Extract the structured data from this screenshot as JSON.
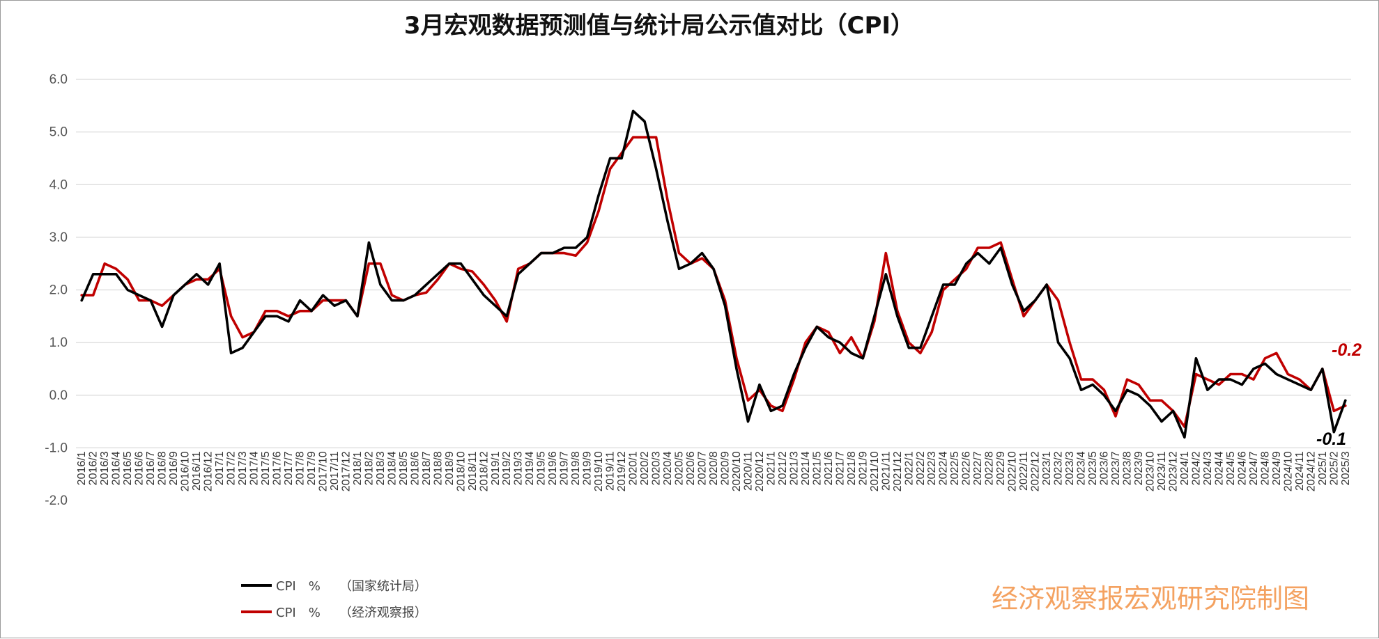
{
  "chart_data": {
    "type": "line",
    "title": "3月宏观数据预测值与统计局公示值对比（CPI）",
    "ylim": [
      -2.0,
      6.0
    ],
    "yticks": [
      "6.0",
      "5.0",
      "4.0",
      "3.0",
      "2.0",
      "1.0",
      "0.0",
      "-1.0",
      "-2.0"
    ],
    "grid": true,
    "legend_position": "bottom-left",
    "x": [
      "2016/1",
      "2016/2",
      "2016/3",
      "2016/4",
      "2016/5",
      "2016/6",
      "2016/7",
      "2016/8",
      "2016/9",
      "2016/10",
      "2016/11",
      "2016/12",
      "2017/1",
      "2017/2",
      "2017/3",
      "2017/4",
      "2017/5",
      "2017/6",
      "2017/7",
      "2017/8",
      "2017/9",
      "2017/10",
      "2017/11",
      "2017/12",
      "2018/1",
      "2018/2",
      "2018/3",
      "2018/4",
      "2018/5",
      "2018/6",
      "2018/7",
      "2018/8",
      "2018/9",
      "2018/10",
      "2018/11",
      "2018/12",
      "2019/1",
      "2019/2",
      "2019/3",
      "2019/4",
      "2019/5",
      "2019/6",
      "2019/7",
      "2019/8",
      "2019/9",
      "2019/10",
      "2019/11",
      "2019/12",
      "2020/1",
      "2020/2",
      "2020/3",
      "2020/4",
      "2020/5",
      "2020/6",
      "2020/7",
      "2020/8",
      "2020/9",
      "2020/10",
      "2020/11",
      "2020/12",
      "2021/1",
      "2021/2",
      "2021/3",
      "2021/4",
      "2021/5",
      "2021/6",
      "2021/7",
      "2021/8",
      "2021/9",
      "2021/10",
      "2021/11",
      "2021/12",
      "2022/1",
      "2022/2",
      "2022/3",
      "2022/4",
      "2022/5",
      "2022/6",
      "2022/7",
      "2022/8",
      "2022/9",
      "2022/10",
      "2022/11",
      "2022/12",
      "2023/1",
      "2023/2",
      "2023/3",
      "2023/4",
      "2023/5",
      "2023/6",
      "2023/7",
      "2023/8",
      "2023/9",
      "2023/10",
      "2023/11",
      "2023/12",
      "2024/1",
      "2024/2",
      "2024/3",
      "2024/4",
      "2024/5",
      "2024/6",
      "2024/7",
      "2024/8",
      "2024/9",
      "2024/10",
      "2024/11",
      "2024/12",
      "2025/1",
      "2025/2",
      "2025/3"
    ],
    "series": [
      {
        "name": "CPI　%　　（国家统计局）",
        "color": "#000000",
        "values": [
          1.8,
          2.3,
          2.3,
          2.3,
          2.0,
          1.9,
          1.8,
          1.3,
          1.9,
          2.1,
          2.3,
          2.1,
          2.5,
          0.8,
          0.9,
          1.2,
          1.5,
          1.5,
          1.4,
          1.8,
          1.6,
          1.9,
          1.7,
          1.8,
          1.5,
          2.9,
          2.1,
          1.8,
          1.8,
          1.9,
          2.1,
          2.3,
          2.5,
          2.5,
          2.2,
          1.9,
          1.7,
          1.5,
          2.3,
          2.5,
          2.7,
          2.7,
          2.8,
          2.8,
          3.0,
          3.8,
          4.5,
          4.5,
          5.4,
          5.2,
          4.3,
          3.3,
          2.4,
          2.5,
          2.7,
          2.4,
          1.7,
          0.5,
          -0.5,
          0.2,
          -0.3,
          -0.2,
          0.4,
          0.9,
          1.3,
          1.1,
          1.0,
          0.8,
          0.7,
          1.5,
          2.3,
          1.5,
          0.9,
          0.9,
          1.5,
          2.1,
          2.1,
          2.5,
          2.7,
          2.5,
          2.8,
          2.1,
          1.6,
          1.8,
          2.1,
          1.0,
          0.7,
          0.1,
          0.2,
          0.0,
          -0.3,
          0.1,
          0.0,
          -0.2,
          -0.5,
          -0.3,
          -0.8,
          0.7,
          0.1,
          0.3,
          0.3,
          0.2,
          0.5,
          0.6,
          0.4,
          0.3,
          0.2,
          0.1,
          0.5,
          -0.7,
          -0.1
        ]
      },
      {
        "name": "CPI　%　　（经济观察报）",
        "color": "#c00000",
        "values": [
          1.9,
          1.9,
          2.5,
          2.4,
          2.2,
          1.8,
          1.8,
          1.7,
          1.9,
          2.1,
          2.2,
          2.2,
          2.4,
          1.5,
          1.1,
          1.2,
          1.6,
          1.6,
          1.5,
          1.6,
          1.6,
          1.8,
          1.8,
          1.8,
          1.5,
          2.5,
          2.5,
          1.9,
          1.8,
          1.9,
          1.95,
          2.2,
          2.5,
          2.4,
          2.35,
          2.1,
          1.8,
          1.4,
          2.4,
          2.5,
          2.7,
          2.7,
          2.7,
          2.65,
          2.9,
          3.5,
          4.3,
          4.6,
          4.9,
          4.9,
          4.9,
          3.7,
          2.7,
          2.5,
          2.6,
          2.4,
          1.8,
          0.7,
          -0.1,
          0.1,
          -0.2,
          -0.3,
          0.3,
          1.0,
          1.3,
          1.2,
          0.8,
          1.1,
          0.7,
          1.4,
          2.7,
          1.6,
          1.0,
          0.8,
          1.2,
          2.0,
          2.2,
          2.4,
          2.8,
          2.8,
          2.9,
          2.2,
          1.5,
          1.8,
          2.1,
          1.8,
          1.0,
          0.3,
          0.3,
          0.1,
          -0.4,
          0.3,
          0.2,
          -0.1,
          -0.1,
          -0.3,
          -0.6,
          0.4,
          0.3,
          0.2,
          0.4,
          0.4,
          0.3,
          0.7,
          0.8,
          0.4,
          0.3,
          0.1,
          0.5,
          -0.3,
          -0.2
        ]
      }
    ],
    "annotations": [
      {
        "text": "-0.2",
        "color": "#c00000"
      },
      {
        "text": "-0.1",
        "color": "#000000"
      }
    ]
  },
  "credit": "经济观察报宏观研究院制图"
}
